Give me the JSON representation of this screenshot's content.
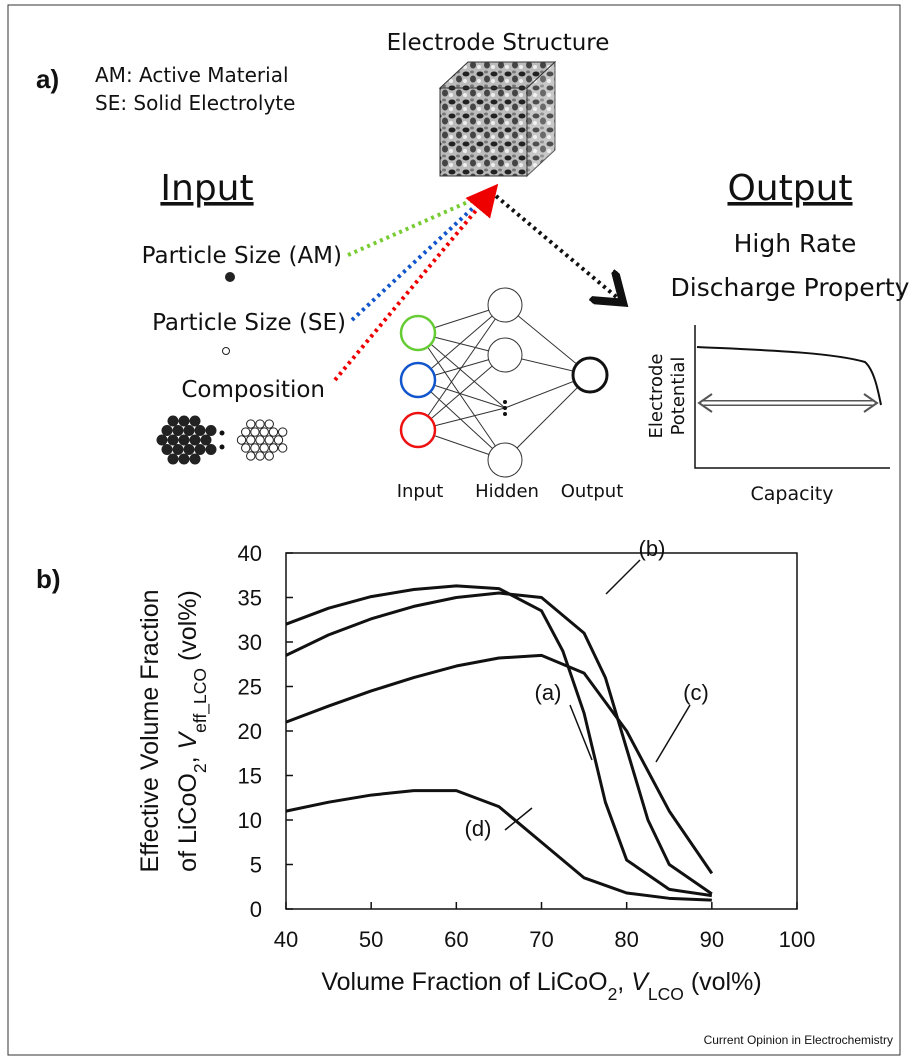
{
  "panel_a": {
    "label": "a)",
    "legend": [
      "AM: Active Material",
      "SE: Solid Electrolyte"
    ],
    "structure_title": "Electrode Structure",
    "input_title": "Input",
    "output_title": "Output",
    "inputs": [
      "Particle Size (AM)",
      "Particle Size (SE)",
      "Composition"
    ],
    "network_labels": [
      "Input",
      "Hidden",
      "Output"
    ],
    "output_lines": [
      "High Rate",
      "Discharge Property"
    ],
    "mini_plot": {
      "y_label": [
        "Electrode",
        "Potential"
      ],
      "x_label": "Capacity"
    }
  },
  "panel_b_label": "b)",
  "chart_data": {
    "type": "line",
    "x_label_runs": [
      {
        "text": "Volume Fraction of LiCoO"
      },
      {
        "text": "2",
        "sub": true
      },
      {
        "text": ", "
      },
      {
        "text": "V",
        "italic": true
      },
      {
        "text": "LCO",
        "sub": true
      },
      {
        "text": " (vol%)"
      }
    ],
    "y_label_lines": [
      [
        {
          "text": "Effective Volume Fraction"
        }
      ],
      [
        {
          "text": "of LiCoO"
        },
        {
          "text": "2",
          "sub": true
        },
        {
          "text": ", "
        },
        {
          "text": "V",
          "italic": true
        },
        {
          "text": "eff_LCO",
          "sub": true
        },
        {
          "text": " (vol%)"
        }
      ]
    ],
    "xlim": [
      40,
      100
    ],
    "xticks": [
      40,
      50,
      60,
      70,
      80,
      90,
      100
    ],
    "ylim": [
      0,
      40
    ],
    "yticks": [
      0,
      5,
      10,
      15,
      20,
      25,
      30,
      35,
      40
    ],
    "series": [
      {
        "name": "(a)",
        "color": "#111111",
        "x": [
          40,
          45,
          50,
          55,
          60,
          65,
          70,
          72.5,
          75,
          77.5,
          80,
          85,
          90
        ],
        "values": [
          32,
          33.8,
          35.1,
          35.9,
          36.3,
          36,
          33.5,
          29,
          22,
          12,
          5.5,
          2.2,
          1.5
        ]
      },
      {
        "name": "(b)",
        "color": "#111111",
        "x": [
          40,
          45,
          50,
          55,
          60,
          65,
          70,
          75,
          77.5,
          80,
          82.5,
          85,
          90
        ],
        "values": [
          28.5,
          30.8,
          32.6,
          34,
          35,
          35.5,
          35,
          31,
          26,
          18,
          10,
          5,
          1.7
        ]
      },
      {
        "name": "(c)",
        "color": "#111111",
        "x": [
          40,
          45,
          50,
          55,
          60,
          65,
          70,
          75,
          80,
          85,
          90
        ],
        "values": [
          21,
          22.8,
          24.5,
          26,
          27.3,
          28.2,
          28.5,
          26.5,
          20,
          11,
          4
        ]
      },
      {
        "name": "(d)",
        "color": "#111111",
        "x": [
          40,
          45,
          50,
          55,
          60,
          65,
          70,
          75,
          80,
          85,
          90
        ],
        "values": [
          11,
          12,
          12.8,
          13.3,
          13.3,
          11.5,
          7.5,
          3.5,
          1.8,
          1.2,
          1
        ]
      }
    ]
  },
  "footer": "Current Opinion in Electrochemistry"
}
